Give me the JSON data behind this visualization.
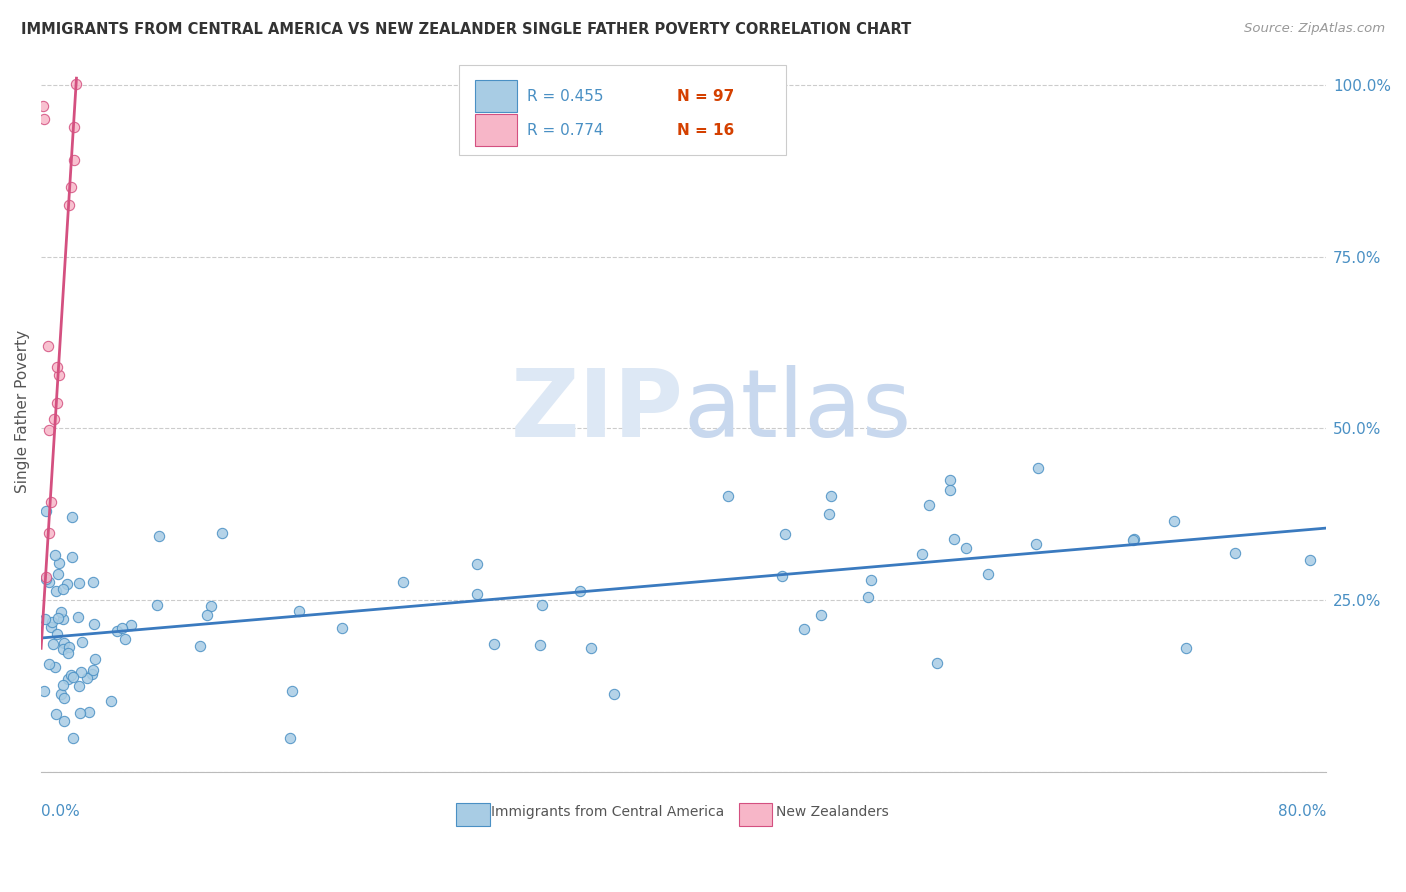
{
  "title": "IMMIGRANTS FROM CENTRAL AMERICA VS NEW ZEALANDER SINGLE FATHER POVERTY CORRELATION CHART",
  "source": "Source: ZipAtlas.com",
  "ylabel": "Single Father Poverty",
  "xlim": [
    0.0,
    0.8
  ],
  "ylim": [
    0.0,
    1.05
  ],
  "ytick_vals": [
    0.0,
    0.25,
    0.5,
    0.75,
    1.0
  ],
  "ytick_labels": [
    "",
    "25.0%",
    "50.0%",
    "75.0%",
    "100.0%"
  ],
  "color_blue_fill": "#a8cce4",
  "color_blue_edge": "#4a90c4",
  "color_pink_fill": "#f7b6c8",
  "color_pink_edge": "#d45080",
  "color_blue_line": "#3a7abf",
  "color_pink_line": "#d45080",
  "color_tick_label": "#4a90c4",
  "color_grid": "#cccccc",
  "color_title": "#333333",
  "color_source": "#999999",
  "watermark_zip_color": "#dde8f5",
  "watermark_atlas_color": "#c8d8ee",
  "legend_R1": "R = 0.455",
  "legend_N1": "N = 97",
  "legend_R2": "R = 0.774",
  "legend_N2": "N = 16",
  "blue_line_x0": 0.0,
  "blue_line_y0": 0.195,
  "blue_line_x1": 0.8,
  "blue_line_y1": 0.355,
  "pink_line_x0": 0.0,
  "pink_line_y0": 0.18,
  "pink_line_x1": 0.022,
  "pink_line_y1": 1.01
}
